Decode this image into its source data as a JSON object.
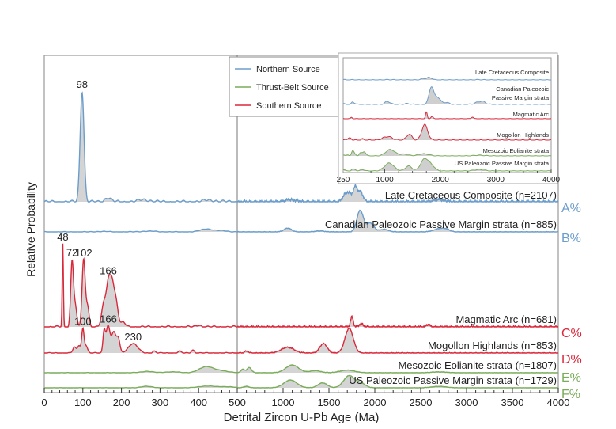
{
  "chart_data": {
    "type": "line",
    "title": "",
    "xlabel": "Detrital Zircon U-Pb Age (Ma)",
    "ylabel": "Relative Probability",
    "x_axis": {
      "segments": [
        {
          "range": [
            0,
            500
          ],
          "ticks": [
            0,
            100,
            200,
            300,
            400,
            500
          ]
        },
        {
          "range": [
            500,
            4000
          ],
          "ticks": [
            1000,
            1500,
            2000,
            2500,
            3000,
            3500,
            4000
          ]
        }
      ],
      "tick_labels": [
        "0",
        "100",
        "200",
        "300",
        "400",
        "500",
        "1000",
        "1500",
        "2000",
        "2500",
        "3000",
        "3500",
        "4000"
      ],
      "break_at": 500
    },
    "legend": {
      "placement": "top-center",
      "entries": [
        {
          "name": "Northern Source",
          "color": "#6b9dcc"
        },
        {
          "name": "Thrust-Belt Source",
          "color": "#7aac5a"
        },
        {
          "name": "Southern Source",
          "color": "#d9283a"
        }
      ]
    },
    "fill_color": "#cfcfcf",
    "series": [
      {
        "name": "Late Cretaceous Composite (n=2107)",
        "source": "Northern Source",
        "color": "#6b9dcc",
        "side_label": "A%",
        "peak_labels": [
          {
            "x": 98,
            "text": "98"
          }
        ],
        "peaks": [
          [
            98,
            1.0,
            5
          ],
          [
            165,
            0.04,
            8
          ],
          [
            260,
            0.02,
            15
          ],
          [
            430,
            0.015,
            20
          ],
          [
            1080,
            0.02,
            60
          ],
          [
            1700,
            0.09,
            40
          ],
          [
            1790,
            0.13,
            25
          ],
          [
            1850,
            0.08,
            25
          ],
          [
            2700,
            0.02,
            60
          ]
        ]
      },
      {
        "name": "Canadian Paleozoic Passive Margin strata (n=885)",
        "source": "Northern Source",
        "color": "#6b9dcc",
        "side_label": "B%",
        "peak_labels": [],
        "peaks": [
          [
            150,
            0.02,
            15
          ],
          [
            270,
            0.03,
            20
          ],
          [
            420,
            0.12,
            15
          ],
          [
            460,
            0.05,
            15
          ],
          [
            1050,
            0.15,
            40
          ],
          [
            1400,
            0.04,
            50
          ],
          [
            1840,
            0.85,
            35
          ],
          [
            1950,
            0.35,
            40
          ],
          [
            2100,
            0.1,
            50
          ],
          [
            2700,
            0.12,
            60
          ],
          [
            2780,
            0.08,
            40
          ]
        ]
      },
      {
        "name": "Magmatic Arc (n=681)",
        "source": "Southern Source",
        "color": "#d9283a",
        "side_label": "C%",
        "peak_labels": [
          {
            "x": 48,
            "text": "48"
          },
          {
            "x": 72,
            "text": "72"
          },
          {
            "x": 102,
            "text": "102"
          },
          {
            "x": 166,
            "text": "166"
          }
        ],
        "peaks": [
          [
            48,
            1.0,
            1.5
          ],
          [
            72,
            0.78,
            3.5
          ],
          [
            80,
            0.25,
            4
          ],
          [
            102,
            0.8,
            4
          ],
          [
            112,
            0.25,
            4
          ],
          [
            155,
            0.28,
            6
          ],
          [
            166,
            0.45,
            5
          ],
          [
            175,
            0.45,
            5
          ],
          [
            185,
            0.32,
            6
          ],
          [
            205,
            0.05,
            6
          ],
          [
            400,
            0.025,
            6
          ],
          [
            1750,
            0.12,
            15
          ],
          [
            1850,
            0.04,
            20
          ],
          [
            2580,
            0.03,
            20
          ]
        ]
      },
      {
        "name": "Mogollon Highlands (n=853)",
        "source": "Southern Source",
        "color": "#d9283a",
        "side_label": "D%",
        "peak_labels": [
          {
            "x": 100,
            "text": "100"
          },
          {
            "x": 166,
            "text": "166"
          },
          {
            "x": 230,
            "text": "230"
          }
        ],
        "peaks": [
          [
            78,
            0.15,
            4
          ],
          [
            90,
            0.2,
            4
          ],
          [
            100,
            0.62,
            3
          ],
          [
            108,
            0.2,
            4
          ],
          [
            155,
            0.55,
            3
          ],
          [
            165,
            0.7,
            5
          ],
          [
            180,
            0.55,
            6
          ],
          [
            192,
            0.35,
            4
          ],
          [
            230,
            0.25,
            12
          ],
          [
            285,
            0.05,
            4
          ],
          [
            350,
            0.05,
            4
          ],
          [
            385,
            0.08,
            4
          ],
          [
            600,
            0.05,
            20
          ],
          [
            1050,
            0.15,
            70
          ],
          [
            1440,
            0.25,
            40
          ],
          [
            1720,
            0.65,
            45
          ]
        ]
      },
      {
        "name": "Mesozoic Eolianite strata (n=1807)",
        "source": "Thrust-Belt Source",
        "color": "#7aac5a",
        "side_label": "E%",
        "peak_labels": [],
        "peaks": [
          [
            265,
            0.08,
            15
          ],
          [
            330,
            0.05,
            20
          ],
          [
            420,
            0.35,
            18
          ],
          [
            460,
            0.1,
            20
          ],
          [
            560,
            0.2,
            20
          ],
          [
            630,
            0.3,
            25
          ],
          [
            1100,
            0.45,
            70
          ],
          [
            1350,
            0.12,
            60
          ],
          [
            1700,
            0.15,
            80
          ],
          [
            2700,
            0.05,
            80
          ]
        ]
      },
      {
        "name": "US Paleozoic Passive Margin strata (n=1729)",
        "source": "Thrust-Belt Source",
        "color": "#7aac5a",
        "side_label": "F%",
        "peak_labels": [],
        "peaks": [
          [
            265,
            0.1,
            15
          ],
          [
            420,
            0.12,
            20
          ],
          [
            470,
            0.08,
            20
          ],
          [
            600,
            0.1,
            30
          ],
          [
            1080,
            0.55,
            70
          ],
          [
            1430,
            0.35,
            50
          ],
          [
            1720,
            0.85,
            60
          ],
          [
            1850,
            0.3,
            50
          ],
          [
            2700,
            0.1,
            80
          ]
        ]
      }
    ],
    "inset": {
      "x_axis": {
        "range": [
          250,
          4000
        ],
        "tick_labels": [
          "250",
          "1000",
          "2000",
          "3000",
          "4000"
        ]
      },
      "series": [
        {
          "name": "Late Cretaceous Composite",
          "color": "#6b9dcc"
        },
        {
          "name": "Canadian Paleozoic Passive Margin strata",
          "color": "#6b9dcc"
        },
        {
          "name": "Magmatic Arc",
          "color": "#d9283a"
        },
        {
          "name": "Mogollon Highlands",
          "color": "#d9283a"
        },
        {
          "name": "Mesozoic Eolianite strata",
          "color": "#7aac5a"
        },
        {
          "name": "US Paleozoic Passive Margin strata",
          "color": "#7aac5a"
        }
      ]
    }
  }
}
